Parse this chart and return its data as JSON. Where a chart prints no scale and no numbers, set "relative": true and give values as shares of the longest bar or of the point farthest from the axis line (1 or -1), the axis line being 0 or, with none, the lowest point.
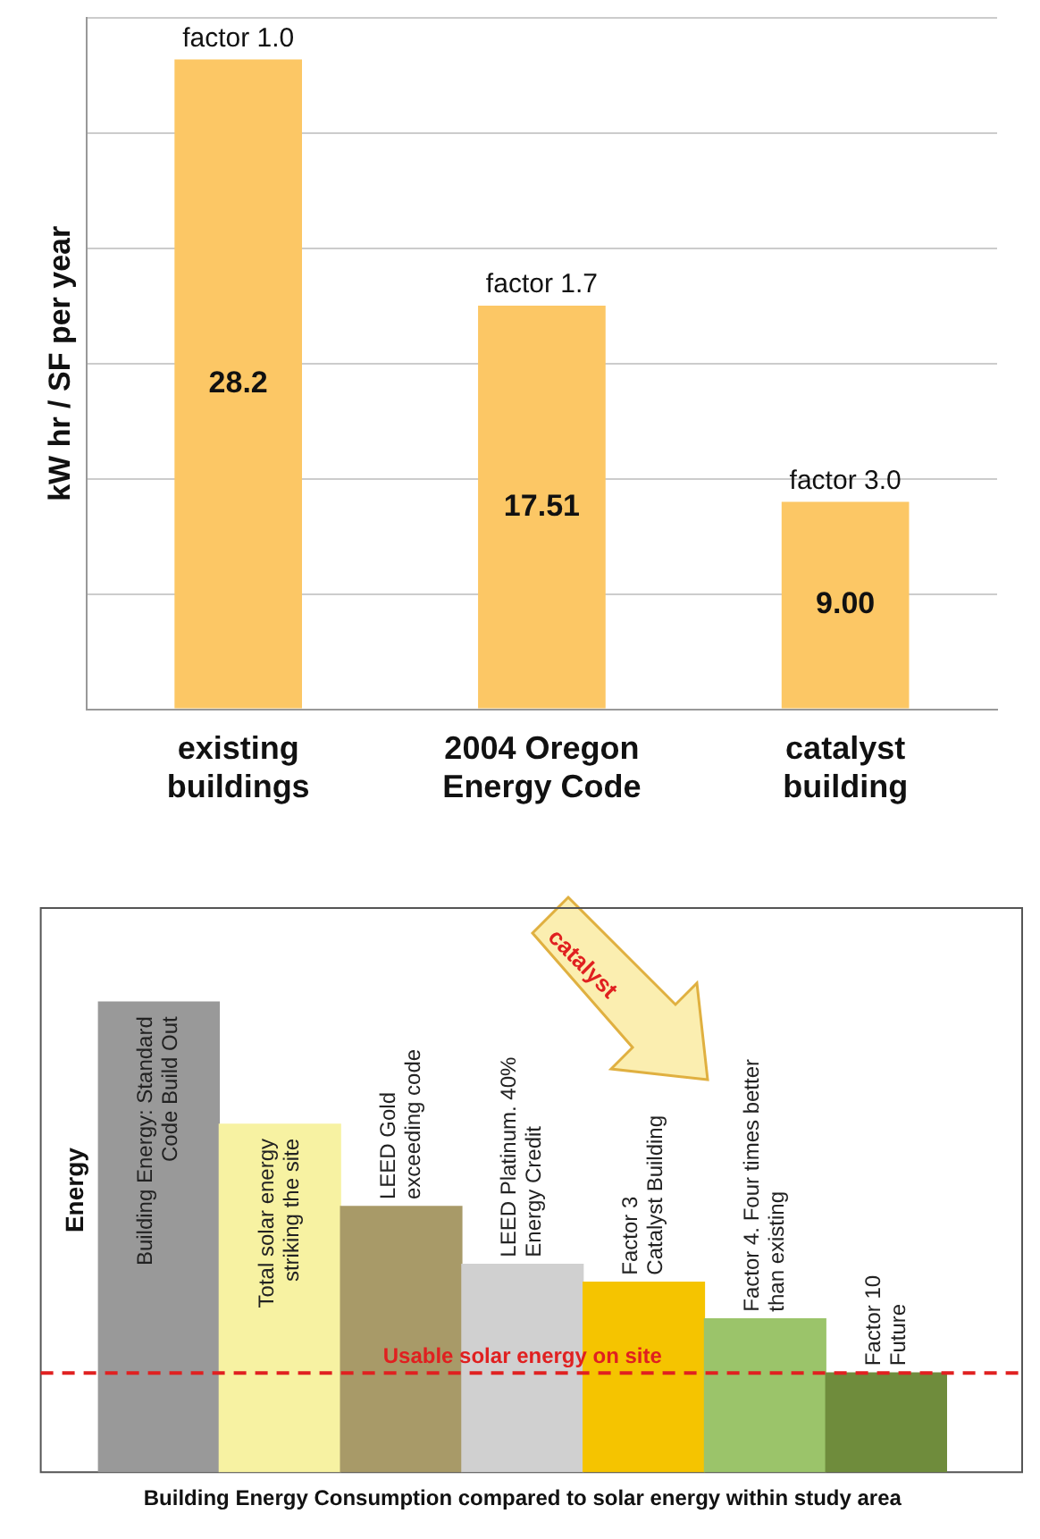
{
  "chart_data": [
    {
      "type": "bar",
      "categories": [
        "existing\nbuildings",
        "2004 Oregon\nEnergy Code",
        "catalyst\nbuilding"
      ],
      "values": [
        28.2,
        17.51,
        9.0
      ],
      "value_labels": [
        "28.2",
        "17.51",
        "9.00"
      ],
      "color": "#fcc765",
      "ylabel": "kW hr / SF per year",
      "ylim": [
        0,
        30
      ],
      "yticks": [
        {
          "value": 0,
          "label": null
        },
        {
          "value": 5,
          "label": null
        },
        {
          "value": 10,
          "label": null
        },
        {
          "value": 15,
          "label": null
        },
        {
          "value": 20,
          "label": null
        },
        {
          "value": 25,
          "label": null
        },
        {
          "value": 30,
          "label": null
        }
      ],
      "grid": "y",
      "tick_labels": "x",
      "legend": false,
      "annotations": [
        {
          "text": "factor 1.0",
          "x": "existing\nbuildings",
          "y": 28.2
        },
        {
          "text": "factor 1.7",
          "x": "2004 Oregon\nEnergy Code",
          "y": 17.51
        },
        {
          "text": "factor 3.0",
          "x": "catalyst\nbuilding",
          "y": 9.0
        }
      ]
    },
    {
      "type": "bar",
      "relative": true,
      "categories": [
        "Building Energy: Standard\nCode Build Out",
        "Total solar energy\nstriking the site",
        "LEED Gold\nexceeding code",
        "LEED Platinum. 40%\nEnergy Credit",
        "Factor 3\nCatalyst Building",
        "Factor 4. Four times better\nthan existing",
        "Factor 10\nFuture"
      ],
      "values": [
        1,
        0.74,
        0.565,
        0.442,
        0.404,
        0.326,
        0.211
      ],
      "colors": [
        "#999999",
        "#f7f2a2",
        "#a89a68",
        "#d0d0d0",
        "#f5c400",
        "#9bc46a",
        "#6f8c3c"
      ],
      "ylabel": "Energy",
      "xlabel": "Building Energy Consumption compared to solar energy within study area",
      "legend": false,
      "ref_lines": [
        {
          "axis": "y",
          "value": 0.211,
          "label": "Usable solar energy on site",
          "color": "#e02020",
          "line_style": "dashed"
        }
      ],
      "annotations": [
        "catalyst"
      ]
    }
  ]
}
